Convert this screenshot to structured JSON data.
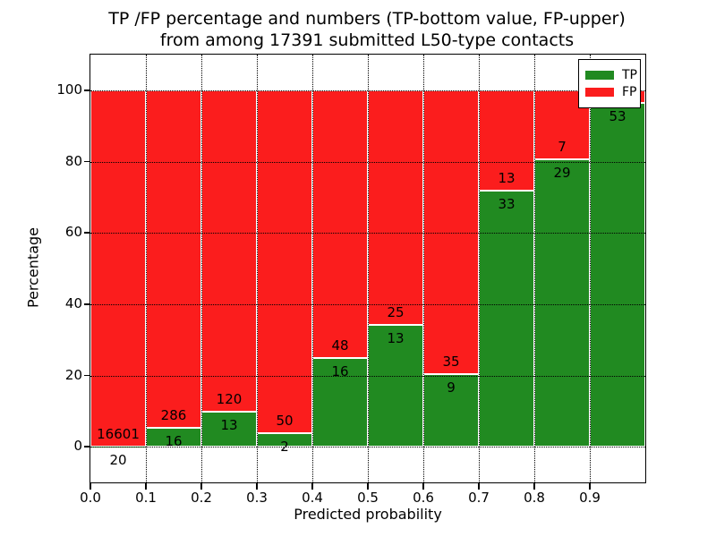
{
  "chart_data": {
    "type": "bar",
    "stacked": true,
    "title_line1": "TP /FP percentage and numbers (TP-bottom value, FP-upper)",
    "title_line2": "from among 17391 submitted L50-type contacts",
    "xlabel": "Predicted probability",
    "ylabel": "Percentage",
    "total_submitted": 17391,
    "xlim": [
      0.0,
      1.0
    ],
    "ylim": [
      -10,
      110
    ],
    "x_tick_labels": [
      "0.0",
      "0.1",
      "0.2",
      "0.3",
      "0.4",
      "0.5",
      "0.6",
      "0.7",
      "0.8",
      "0.9"
    ],
    "x_tick_values": [
      0.0,
      0.1,
      0.2,
      0.3,
      0.4,
      0.5,
      0.6,
      0.7,
      0.8,
      0.9
    ],
    "y_tick_labels": [
      "0",
      "20",
      "40",
      "60",
      "80",
      "100"
    ],
    "y_tick_values": [
      0,
      20,
      40,
      60,
      80,
      100
    ],
    "grid": "dotted",
    "colors": {
      "tp": "#218a21",
      "fp": "#fb1d1d",
      "bar_edge": "#ffffff"
    },
    "legend": {
      "position": "upper right",
      "entries": [
        {
          "label": "TP",
          "color": "#218a21"
        },
        {
          "label": "FP",
          "color": "#fb1d1d"
        }
      ]
    },
    "bars": [
      {
        "range": [
          0.0,
          0.1
        ],
        "tp_label": "20",
        "fp_label": "16601",
        "tp_pct": 0.12
      },
      {
        "range": [
          0.1,
          0.2
        ],
        "tp_label": "16",
        "fp_label": "286",
        "tp_pct": 5.3
      },
      {
        "range": [
          0.2,
          0.3
        ],
        "tp_label": "13",
        "fp_label": "120",
        "tp_pct": 9.77
      },
      {
        "range": [
          0.3,
          0.4
        ],
        "tp_label": "2",
        "fp_label": "50",
        "tp_pct": 3.85
      },
      {
        "range": [
          0.4,
          0.5
        ],
        "tp_label": "16",
        "fp_label": "48",
        "tp_pct": 25.0
      },
      {
        "range": [
          0.5,
          0.6
        ],
        "tp_label": "13",
        "fp_label": "25",
        "tp_pct": 34.21
      },
      {
        "range": [
          0.6,
          0.7
        ],
        "tp_label": "9",
        "fp_label": "35",
        "tp_pct": 20.45
      },
      {
        "range": [
          0.7,
          0.8
        ],
        "tp_label": "33",
        "fp_label": "13",
        "tp_pct": 71.74
      },
      {
        "range": [
          0.8,
          0.9
        ],
        "tp_label": "29",
        "fp_label": "7",
        "tp_pct": 80.56
      },
      {
        "range": [
          0.9,
          1.0
        ],
        "tp_label": "53",
        "fp_label": "",
        "tp_pct": 96.36
      }
    ]
  }
}
